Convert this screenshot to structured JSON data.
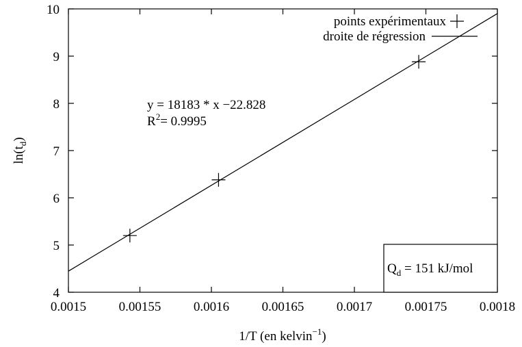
{
  "chart_data": {
    "type": "scatter",
    "xlabel": "1/T (en kelvin",
    "xlabel_sup": "−1",
    "xlabel_close": ")",
    "ylabel": "ln(t",
    "ylabel_sub": "d",
    "ylabel_close": ")",
    "xlim": [
      0.0015,
      0.0018
    ],
    "ylim": [
      4,
      10
    ],
    "xticks": [
      0.0015,
      0.00155,
      0.0016,
      0.00165,
      0.0017,
      0.00175,
      0.0018
    ],
    "xtick_labels": [
      "0.0015",
      "0.00155",
      "0.0016",
      "0.00165",
      "0.0017",
      "0.00175",
      "0.0018"
    ],
    "yticks": [
      4,
      5,
      6,
      7,
      8,
      9,
      10
    ],
    "ytick_labels": [
      "4",
      "5",
      "6",
      "7",
      "8",
      "9",
      "10"
    ],
    "series": [
      {
        "name": "points expérimentaux",
        "marker": "plus",
        "x": [
          0.001543,
          0.001605,
          0.001745
        ],
        "y": [
          5.2,
          6.38,
          8.88
        ]
      },
      {
        "name": "droite de régression",
        "kind": "line",
        "slope": 18183,
        "intercept": -22.828
      }
    ],
    "legend_position": "top-right",
    "grid": false,
    "annotations": {
      "equation": "y = 18183 * x  −22.828",
      "r2_prefix": "R",
      "r2_sup": "2",
      "r2_value": "= 0.9995",
      "q_prefix": "Q",
      "q_sub": "d",
      "q_value": " = 151 kJ/mol"
    },
    "colors": {
      "axes": "#000000",
      "line": "#000000",
      "marker": "#000000"
    }
  }
}
